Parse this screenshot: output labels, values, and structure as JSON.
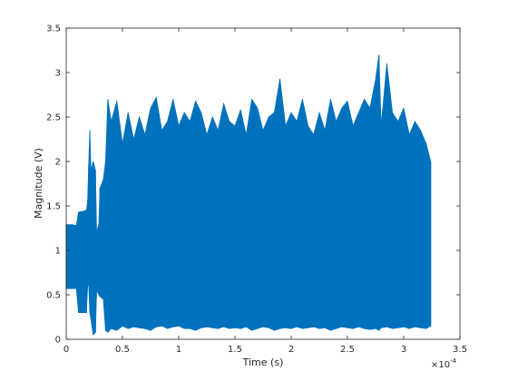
{
  "chart_data": {
    "type": "line",
    "title": "",
    "xlabel": "Time (s)",
    "ylabel": "Magnitude (V)",
    "x_exponent_label": "×10",
    "x_exponent_power": "-4",
    "xlim": [
      0,
      3.5
    ],
    "ylim": [
      0,
      3.5
    ],
    "x_unit_scale": 0.0001,
    "xticks": [
      0,
      0.5,
      1,
      1.5,
      2,
      2.5,
      3,
      3.5
    ],
    "xtick_labels": [
      "0",
      "0.5",
      "1",
      "1.5",
      "2",
      "2.5",
      "3",
      "3.5"
    ],
    "yticks": [
      0,
      0.5,
      1,
      1.5,
      2,
      2.5,
      3,
      3.5
    ],
    "ytick_labels": [
      "0",
      "0.5",
      "1",
      "1.5",
      "2",
      "2.5",
      "3",
      "3.5"
    ],
    "grid": false,
    "box": true,
    "series": [
      {
        "color": "#0072BD",
        "points": [
          [
            0.0,
            0.57,
            1.29
          ],
          [
            0.05,
            0.57,
            1.29
          ],
          [
            0.09,
            0.57,
            1.28
          ],
          [
            0.11,
            0.3,
            1.43
          ],
          [
            0.15,
            0.3,
            1.44
          ],
          [
            0.18,
            0.3,
            1.45
          ],
          [
            0.19,
            0.6,
            1.55
          ],
          [
            0.2,
            0.62,
            1.97
          ],
          [
            0.21,
            0.3,
            2.35
          ],
          [
            0.22,
            0.22,
            1.9
          ],
          [
            0.24,
            0.05,
            2.0
          ],
          [
            0.26,
            0.08,
            1.9
          ],
          [
            0.27,
            0.55,
            1.2
          ],
          [
            0.29,
            0.5,
            1.3
          ],
          [
            0.3,
            0.48,
            1.7
          ],
          [
            0.33,
            0.45,
            1.8
          ],
          [
            0.35,
            0.1,
            2.0
          ],
          [
            0.37,
            0.08,
            2.7
          ],
          [
            0.4,
            0.12,
            2.45
          ],
          [
            0.45,
            0.1,
            2.68
          ],
          [
            0.5,
            0.15,
            2.2
          ],
          [
            0.55,
            0.12,
            2.55
          ],
          [
            0.6,
            0.14,
            2.25
          ],
          [
            0.65,
            0.13,
            2.5
          ],
          [
            0.7,
            0.12,
            2.3
          ],
          [
            0.75,
            0.1,
            2.6
          ],
          [
            0.8,
            0.14,
            2.72
          ],
          [
            0.85,
            0.15,
            2.35
          ],
          [
            0.9,
            0.12,
            2.45
          ],
          [
            0.95,
            0.14,
            2.7
          ],
          [
            1.0,
            0.15,
            2.4
          ],
          [
            1.05,
            0.12,
            2.55
          ],
          [
            1.1,
            0.12,
            2.45
          ],
          [
            1.15,
            0.1,
            2.68
          ],
          [
            1.2,
            0.13,
            2.55
          ],
          [
            1.25,
            0.14,
            2.3
          ],
          [
            1.3,
            0.13,
            2.5
          ],
          [
            1.35,
            0.12,
            2.35
          ],
          [
            1.4,
            0.14,
            2.65
          ],
          [
            1.45,
            0.12,
            2.45
          ],
          [
            1.5,
            0.13,
            2.4
          ],
          [
            1.55,
            0.12,
            2.58
          ],
          [
            1.6,
            0.14,
            2.3
          ],
          [
            1.65,
            0.1,
            2.7
          ],
          [
            1.7,
            0.12,
            2.6
          ],
          [
            1.75,
            0.14,
            2.35
          ],
          [
            1.8,
            0.13,
            2.5
          ],
          [
            1.85,
            0.1,
            2.55
          ],
          [
            1.9,
            0.12,
            2.93
          ],
          [
            1.95,
            0.13,
            2.4
          ],
          [
            2.0,
            0.12,
            2.55
          ],
          [
            2.05,
            0.14,
            2.45
          ],
          [
            2.1,
            0.12,
            2.7
          ],
          [
            2.15,
            0.13,
            2.4
          ],
          [
            2.2,
            0.14,
            2.3
          ],
          [
            2.25,
            0.12,
            2.55
          ],
          [
            2.3,
            0.13,
            2.35
          ],
          [
            2.35,
            0.1,
            2.7
          ],
          [
            2.4,
            0.12,
            2.45
          ],
          [
            2.45,
            0.14,
            2.6
          ],
          [
            2.5,
            0.13,
            2.68
          ],
          [
            2.55,
            0.12,
            2.4
          ],
          [
            2.6,
            0.14,
            2.55
          ],
          [
            2.65,
            0.12,
            2.7
          ],
          [
            2.7,
            0.11,
            2.6
          ],
          [
            2.75,
            0.12,
            2.92
          ],
          [
            2.78,
            0.1,
            3.2
          ],
          [
            2.8,
            0.13,
            2.4
          ],
          [
            2.85,
            0.14,
            3.1
          ],
          [
            2.9,
            0.12,
            2.55
          ],
          [
            2.95,
            0.13,
            2.45
          ],
          [
            3.0,
            0.14,
            2.6
          ],
          [
            3.05,
            0.12,
            2.3
          ],
          [
            3.1,
            0.14,
            2.45
          ],
          [
            3.15,
            0.13,
            2.35
          ],
          [
            3.2,
            0.12,
            2.2
          ],
          [
            3.24,
            0.15,
            2.0
          ]
        ]
      }
    ]
  }
}
